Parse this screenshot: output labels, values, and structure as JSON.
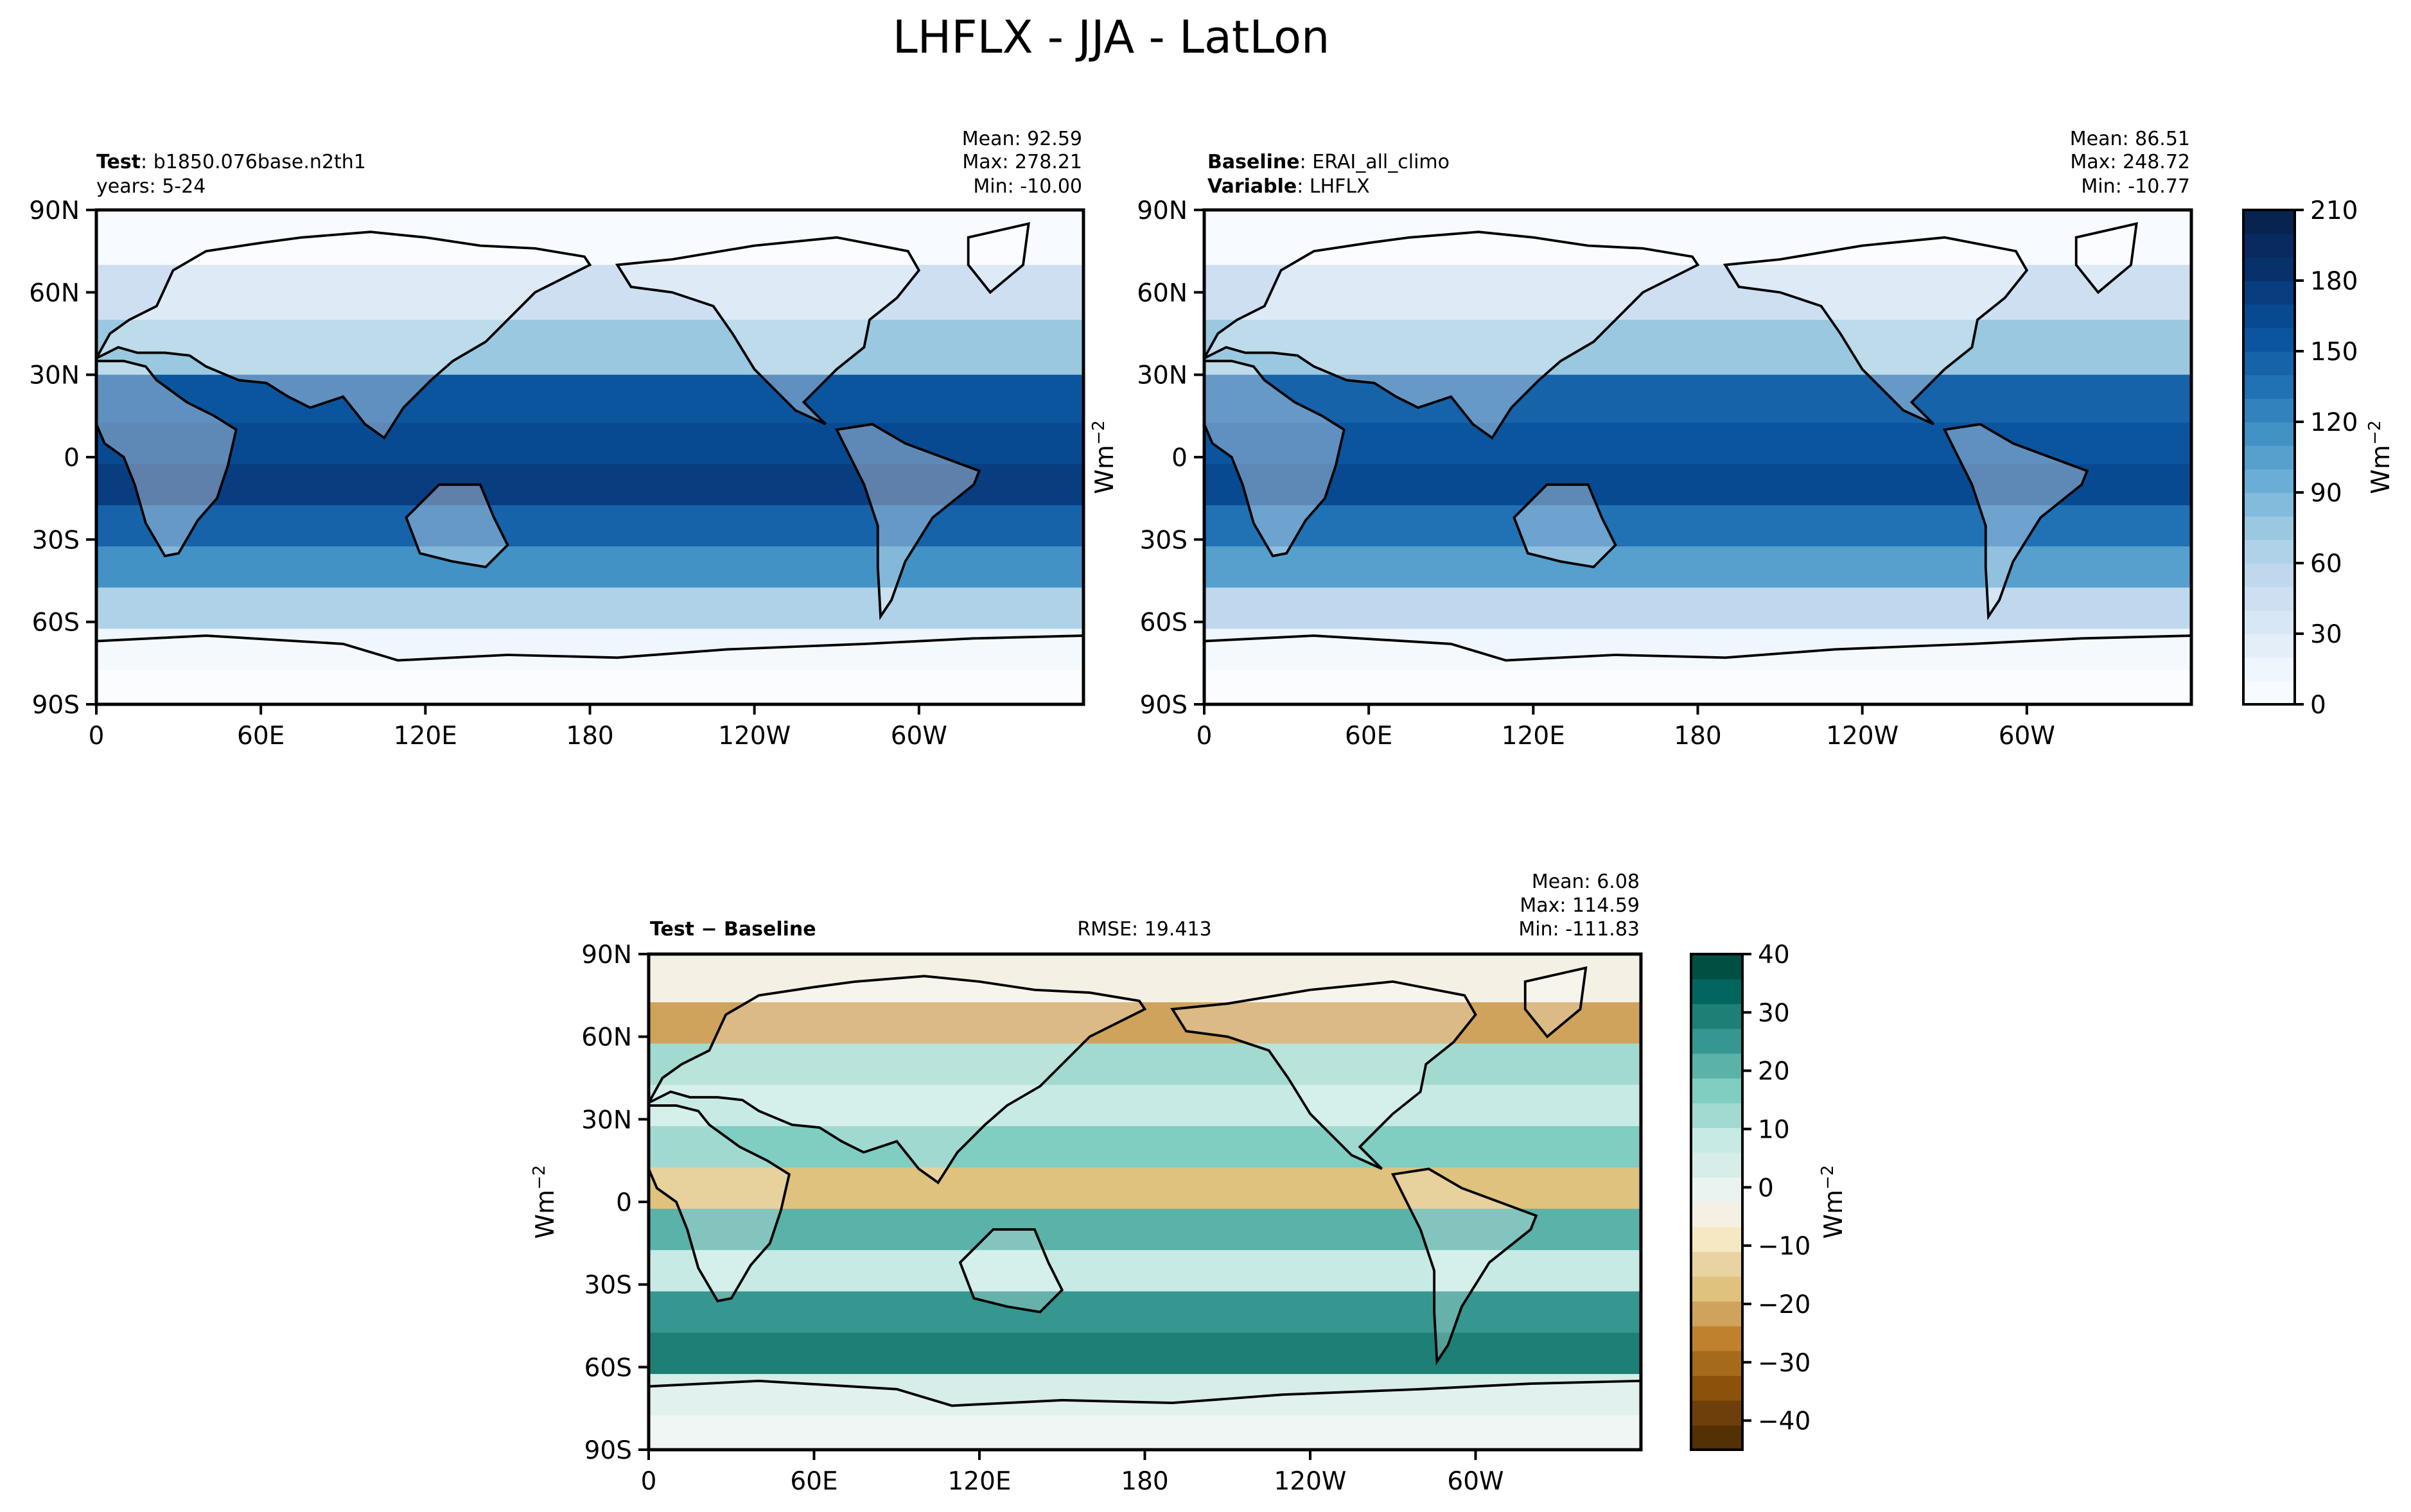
{
  "figure": {
    "title": "LHFLX - JJA - LatLon"
  },
  "chart_data": [
    {
      "type": "heatmap",
      "panel": "test",
      "label_bold": "Test",
      "label_value": "b1850.076base.n2th1",
      "label_line2": "years: 5-24",
      "stats": {
        "mean": "Mean: 92.59",
        "max": "Max: 278.21",
        "min": "Min: -10.00"
      },
      "x_ticks": [
        "0",
        "60E",
        "120E",
        "180",
        "120W",
        "60W"
      ],
      "x_tick_values": [
        0,
        60,
        120,
        180,
        240,
        300
      ],
      "xlim": [
        0,
        360
      ],
      "y_ticks": [
        "90N",
        "60N",
        "30N",
        "0",
        "30S",
        "60S",
        "90S"
      ],
      "y_tick_values": [
        90,
        60,
        30,
        0,
        -30,
        -60,
        -90
      ],
      "ylim": [
        -90,
        90
      ],
      "colormap": "Blues",
      "zones": [
        {
          "lat": 80,
          "value": 8
        },
        {
          "lat": 60,
          "value": 45
        },
        {
          "lat": 40,
          "value": 75
        },
        {
          "lat": 20,
          "value": 150
        },
        {
          "lat": 5,
          "value": 165
        },
        {
          "lat": -10,
          "value": 175
        },
        {
          "lat": -25,
          "value": 140
        },
        {
          "lat": -40,
          "value": 115
        },
        {
          "lat": -55,
          "value": 60
        },
        {
          "lat": -70,
          "value": 10
        },
        {
          "lat": -85,
          "value": 2
        }
      ]
    },
    {
      "type": "heatmap",
      "panel": "baseline",
      "label_bold": "Baseline",
      "label_value": "ERAI_all_climo",
      "label_bold2": "Variable",
      "label_value2": "LHFLX",
      "stats": {
        "mean": "Mean: 86.51",
        "max": "Max: 248.72",
        "min": "Min: -10.77"
      },
      "ylabel": "Wm$^{-2}$",
      "ylabel_text": "Wm",
      "ylabel_sup": "−2",
      "x_ticks": [
        "0",
        "60E",
        "120E",
        "180",
        "120W",
        "60W"
      ],
      "x_tick_values": [
        0,
        60,
        120,
        180,
        240,
        300
      ],
      "xlim": [
        0,
        360
      ],
      "y_ticks": [
        "90N",
        "60N",
        "30N",
        "0",
        "30S",
        "60S",
        "90S"
      ],
      "y_tick_values": [
        90,
        60,
        30,
        0,
        -30,
        -60,
        -90
      ],
      "ylim": [
        -90,
        90
      ],
      "colormap": "Blues",
      "zones": [
        {
          "lat": 80,
          "value": 8
        },
        {
          "lat": 60,
          "value": 40
        },
        {
          "lat": 40,
          "value": 70
        },
        {
          "lat": 20,
          "value": 140
        },
        {
          "lat": 5,
          "value": 155
        },
        {
          "lat": -10,
          "value": 165
        },
        {
          "lat": -25,
          "value": 130
        },
        {
          "lat": -40,
          "value": 105
        },
        {
          "lat": -55,
          "value": 55
        },
        {
          "lat": -70,
          "value": 10
        },
        {
          "lat": -85,
          "value": 2
        }
      ]
    },
    {
      "type": "heatmap",
      "panel": "difference",
      "label_bold": "Test − Baseline",
      "rmse": "RMSE: 19.413",
      "stats": {
        "mean": "Mean:  6.08",
        "max": "Max: 114.59",
        "min": "Min: -111.83"
      },
      "ylabel_text": "Wm",
      "ylabel_sup": "−2",
      "x_ticks": [
        "0",
        "60E",
        "120E",
        "180",
        "120W",
        "60W"
      ],
      "x_tick_values": [
        0,
        60,
        120,
        180,
        240,
        300
      ],
      "xlim": [
        0,
        360
      ],
      "y_ticks": [
        "90N",
        "60N",
        "30N",
        "0",
        "30S",
        "60S",
        "90S"
      ],
      "y_tick_values": [
        90,
        60,
        30,
        0,
        -30,
        -60,
        -90
      ],
      "ylim": [
        -90,
        90
      ],
      "colormap": "BrBG",
      "zones": [
        {
          "lat": 80,
          "value": -5
        },
        {
          "lat": 65,
          "value": -20
        },
        {
          "lat": 50,
          "value": 12
        },
        {
          "lat": 35,
          "value": 8
        },
        {
          "lat": 20,
          "value": 15
        },
        {
          "lat": 5,
          "value": -18
        },
        {
          "lat": -10,
          "value": 22
        },
        {
          "lat": -25,
          "value": 10
        },
        {
          "lat": -40,
          "value": 25
        },
        {
          "lat": -55,
          "value": 30
        },
        {
          "lat": -70,
          "value": 2
        },
        {
          "lat": -85,
          "value": 0
        }
      ]
    }
  ],
  "colorbars": [
    {
      "name": "colorbar-main",
      "ticks": [
        "210",
        "180",
        "150",
        "120",
        "90",
        "60",
        "30",
        "0"
      ],
      "tick_values": [
        210,
        180,
        150,
        120,
        90,
        60,
        30,
        0
      ],
      "range": [
        0,
        210
      ],
      "label_text": "Wm",
      "label_sup": "−2",
      "colors": [
        "#f7fbff",
        "#eff6fd",
        "#e3eef9",
        "#d8e7f5",
        "#cddff1",
        "#bfd8ed",
        "#b0d2e8",
        "#9ac8e0",
        "#82bbdb",
        "#6aaed6",
        "#56a0ce",
        "#4292c6",
        "#3282be",
        "#2171b5",
        "#1663aa",
        "#0b559f",
        "#084a91",
        "#083d7f",
        "#08306b",
        "#082a60",
        "#08234f"
      ]
    },
    {
      "name": "colorbar-diff",
      "ticks": [
        "40",
        "30",
        "20",
        "10",
        "0",
        "−10",
        "−20",
        "−30",
        "−40"
      ],
      "tick_values": [
        40,
        30,
        20,
        10,
        0,
        -10,
        -20,
        -30,
        -40
      ],
      "range": [
        -45,
        40
      ],
      "label_text": "Wm",
      "label_sup": "−2",
      "colors": [
        "#543005",
        "#6f3f0b",
        "#8c510a",
        "#a66a1b",
        "#bf812d",
        "#cfa35c",
        "#dfc27d",
        "#ead3a2",
        "#f6e8c3",
        "#f5f0e4",
        "#ebf3f1",
        "#d6ede9",
        "#c7eae5",
        "#a3dad0",
        "#80cdc1",
        "#5ab2a8",
        "#35978f",
        "#1d7f76",
        "#01665e",
        "#004f43"
      ]
    }
  ]
}
